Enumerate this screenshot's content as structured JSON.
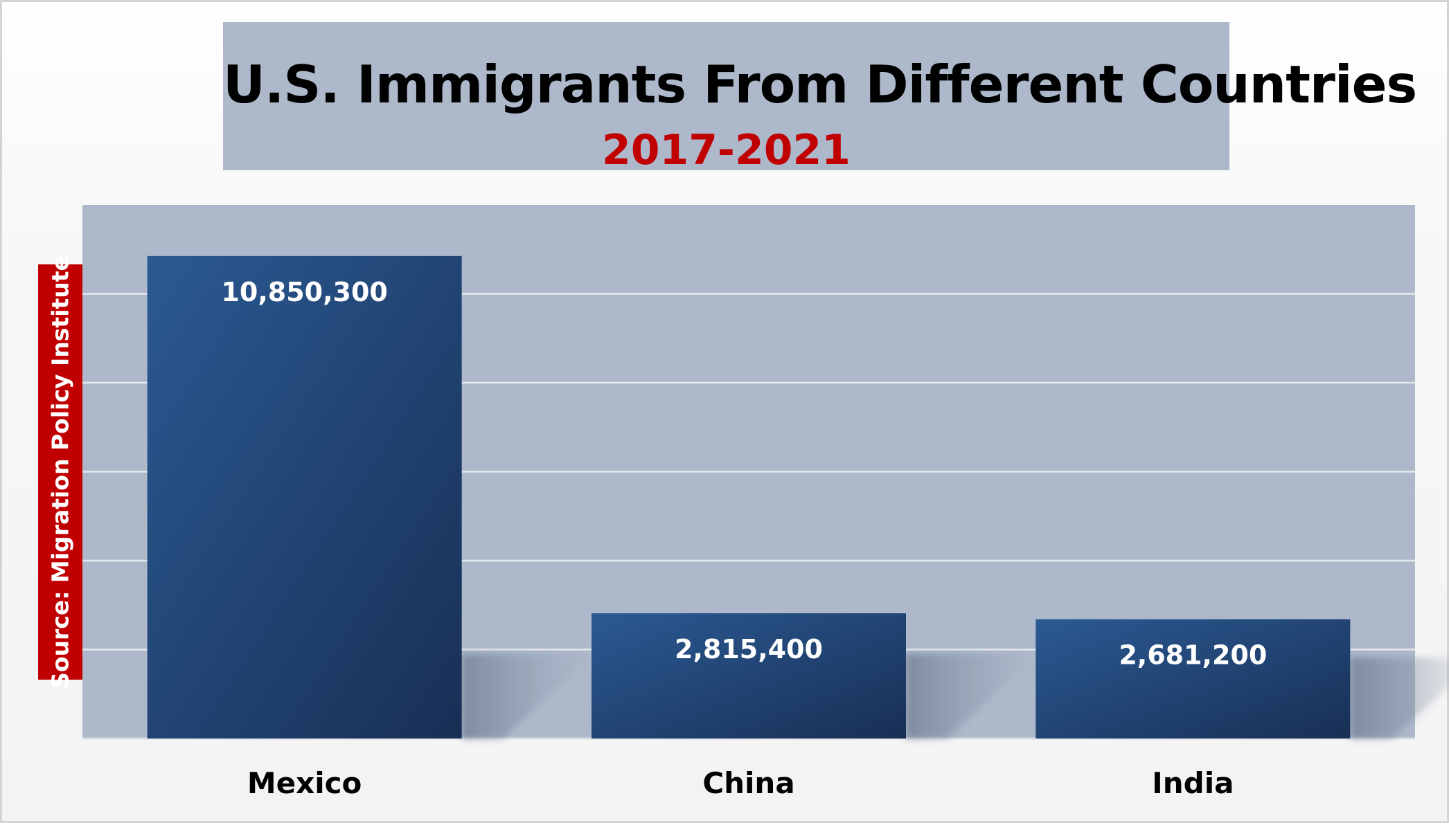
{
  "header": {
    "title": "U.S. Immigrants From Different Countries",
    "subtitle": "2017-2021"
  },
  "source_label": "Source: Migration Policy Institute",
  "colors": {
    "plot_background": "#adb9cb",
    "bar_top": "#2b5a93",
    "bar_bottom": "#182f55",
    "subtitle": "#c00000",
    "source_box": "#c00000",
    "gridline": "#e6e9ee"
  },
  "chart_data": {
    "type": "bar",
    "title": "U.S. Immigrants From Different Countries",
    "subtitle": "2017-2021",
    "categories": [
      "Mexico",
      "China",
      "India"
    ],
    "values": [
      10850300,
      2815400,
      2681200
    ],
    "data_labels": [
      "10,850,300",
      "2,815,400",
      "2,681,200"
    ],
    "xlabel": "",
    "ylabel": "",
    "ylim": [
      0,
      12000000
    ],
    "y_gridlines": [
      2000000,
      4000000,
      6000000,
      8000000,
      10000000
    ],
    "grid": true,
    "y_tick_labels_visible": false,
    "legend": "none"
  }
}
